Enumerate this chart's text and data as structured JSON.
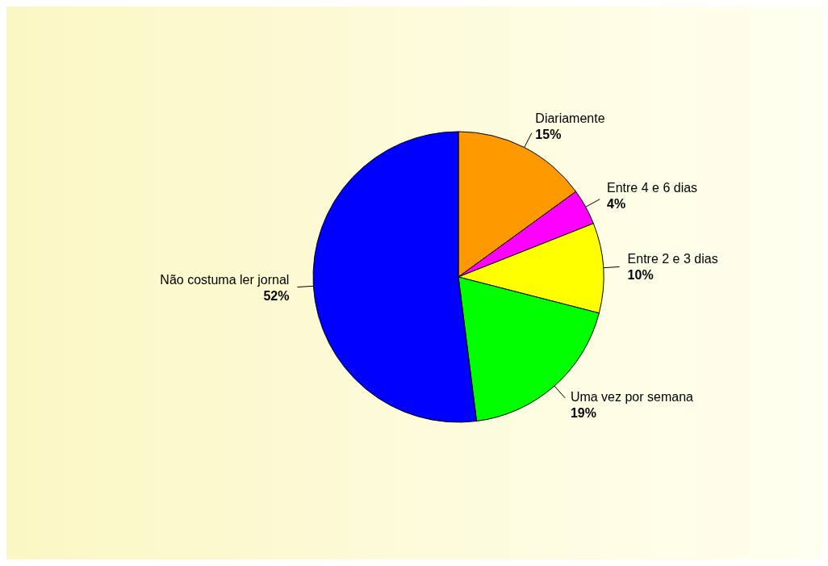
{
  "chart_data": {
    "type": "pie",
    "categories": [
      "Diariamente",
      "Entre 4 e 6 dias",
      "Entre 2 e 3 dias",
      "Uma vez por semana",
      "Não costuma ler jornal"
    ],
    "values": [
      15,
      4,
      10,
      19,
      52
    ],
    "colors": [
      "#ff9900",
      "#ff00ff",
      "#ffff00",
      "#00ff00",
      "#0000ff"
    ],
    "value_labels": [
      "15%",
      "4%",
      "10%",
      "19%",
      "52%"
    ],
    "legend": false
  }
}
